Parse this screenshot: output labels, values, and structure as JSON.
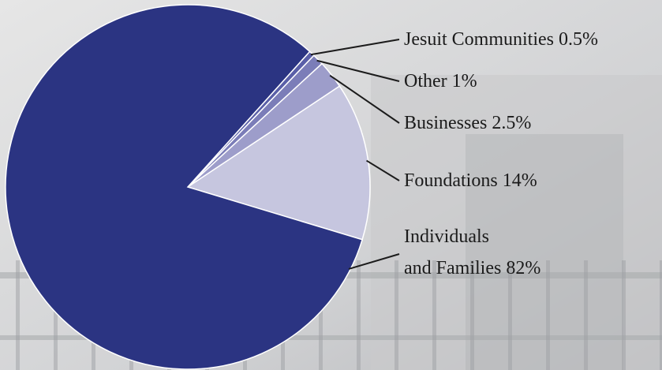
{
  "chart_data": {
    "type": "pie",
    "categories": [
      "Jesuit Communities",
      "Other",
      "Businesses",
      "Foundations",
      "Individuals\nand Families"
    ],
    "values": [
      0.5,
      1,
      2.5,
      14,
      82
    ],
    "value_labels": [
      "0.5%",
      "1%",
      "2.5%",
      "14%",
      "82%"
    ],
    "colors": [
      "#5a5fa8",
      "#7b7db8",
      "#9d9dca",
      "#c6c6df",
      "#2b3482"
    ]
  }
}
